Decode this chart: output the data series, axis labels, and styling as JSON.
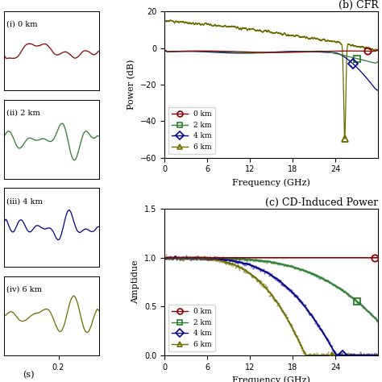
{
  "title_b": "(b) CFR",
  "title_c": "(c) CD-Induced Power",
  "ylabel_b": "Power (dB)",
  "ylabel_c": "Amptidue",
  "xlabel_bc": "Frequency (GHz)",
  "ylim_b": [
    -60,
    20
  ],
  "ylim_c": [
    0,
    1.5
  ],
  "xlim_bc": [
    0,
    30
  ],
  "xticks_bc": [
    0,
    6,
    12,
    18,
    24
  ],
  "yticks_b": [
    -60,
    -40,
    -20,
    0,
    20
  ],
  "yticks_c": [
    0,
    0.5,
    1.0,
    1.5
  ],
  "labels_left": [
    "(i) 0 km",
    "(ii) 2 km",
    "(iii) 4 km",
    "(iv) 6 km"
  ],
  "ylabel_left": "(s)",
  "colors": {
    "0km": "#8B0000",
    "2km": "#2E7D32",
    "4km": "#00008B",
    "6km": "#6B6B00"
  },
  "legend_labels": [
    "0 km",
    "2 km",
    "4 km",
    "6 km"
  ],
  "legend_markers": [
    "o",
    "s",
    "D",
    "^"
  ],
  "background": "#ffffff"
}
